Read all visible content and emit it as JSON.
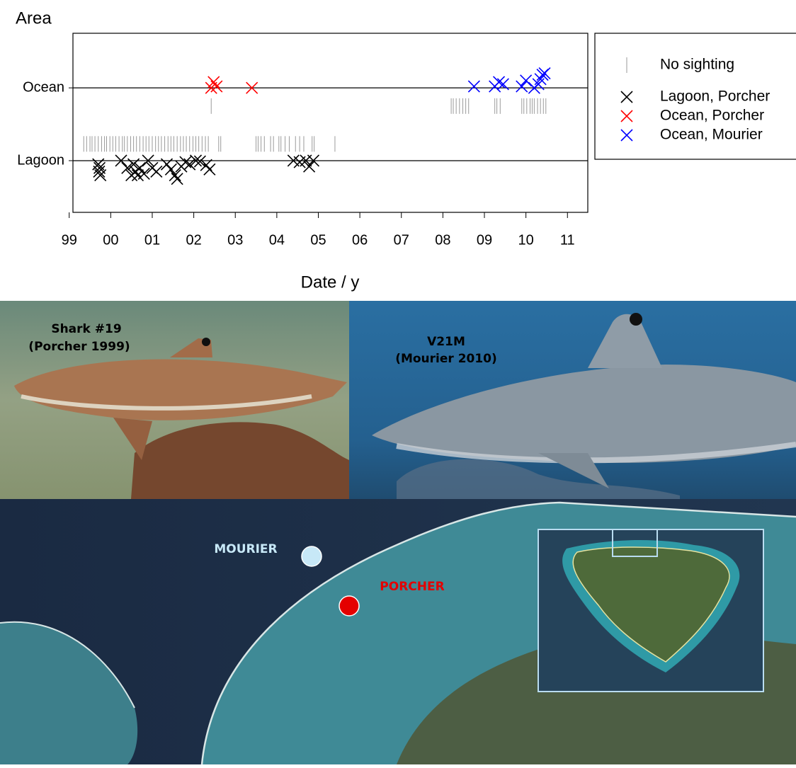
{
  "chart_data": {
    "type": "scatter",
    "ylabel": "Area",
    "xlabel": "Date / y",
    "xlim": [
      1999.09,
      2011.49
    ],
    "ylim": [
      -0.71,
      1.75
    ],
    "xticks": [
      {
        "value": 1999,
        "label": "99"
      },
      {
        "value": 2000,
        "label": "00"
      },
      {
        "value": 2001,
        "label": "01"
      },
      {
        "value": 2002,
        "label": "02"
      },
      {
        "value": 2003,
        "label": "03"
      },
      {
        "value": 2004,
        "label": "04"
      },
      {
        "value": 2005,
        "label": "05"
      },
      {
        "value": 2006,
        "label": "06"
      },
      {
        "value": 2007,
        "label": "07"
      },
      {
        "value": 2008,
        "label": "08"
      },
      {
        "value": 2009,
        "label": "09"
      },
      {
        "value": 2010,
        "label": "10"
      },
      {
        "value": 2011,
        "label": "11"
      }
    ],
    "yticks": [
      {
        "value": 0,
        "label": "Lagoon"
      },
      {
        "value": 1,
        "label": "Ocean"
      }
    ],
    "grid": true,
    "legend": "right",
    "series": [
      {
        "name": "No sighting",
        "color": "#9a9a9a",
        "marker": "tick",
        "x": [
          1999.35,
          1999.42,
          1999.5,
          1999.55,
          1999.62,
          1999.7,
          1999.78,
          1999.85,
          1999.9,
          1999.98,
          2000.05,
          2000.12,
          2000.2,
          2000.28,
          2000.33,
          2000.4,
          2000.48,
          2000.55,
          2000.62,
          2000.7,
          2000.78,
          2000.85,
          2000.92,
          2001.0,
          2001.08,
          2001.15,
          2001.22,
          2001.3,
          2001.38,
          2001.45,
          2001.52,
          2001.6,
          2001.68,
          2001.75,
          2001.82,
          2001.9,
          2001.98,
          2002.05,
          2002.12,
          2002.2,
          2002.28,
          2002.35,
          2002.6,
          2002.65,
          2003.5,
          2003.55,
          2003.62,
          2003.7,
          2003.85,
          2003.92,
          2004.05,
          2004.1,
          2004.2,
          2004.3,
          2004.45,
          2004.55,
          2004.65,
          2004.85,
          2004.9,
          2005.4,
          2002.42,
          2008.2,
          2008.25,
          2008.32,
          2008.4,
          2008.48,
          2008.55,
          2008.62,
          2009.25,
          2009.3,
          2009.38,
          2009.9,
          2009.95,
          2010.02,
          2010.1,
          2010.15,
          2010.2,
          2010.28,
          2010.35,
          2010.42,
          2010.48
        ],
        "values": [
          0.23,
          0.23,
          0.23,
          0.23,
          0.23,
          0.23,
          0.23,
          0.23,
          0.23,
          0.23,
          0.23,
          0.23,
          0.23,
          0.23,
          0.23,
          0.23,
          0.23,
          0.23,
          0.23,
          0.23,
          0.23,
          0.23,
          0.23,
          0.23,
          0.23,
          0.23,
          0.23,
          0.23,
          0.23,
          0.23,
          0.23,
          0.23,
          0.23,
          0.23,
          0.23,
          0.23,
          0.23,
          0.23,
          0.23,
          0.23,
          0.23,
          0.23,
          0.23,
          0.23,
          0.23,
          0.23,
          0.23,
          0.23,
          0.23,
          0.23,
          0.23,
          0.23,
          0.23,
          0.23,
          0.23,
          0.23,
          0.23,
          0.23,
          0.23,
          0.23,
          0.75,
          0.75,
          0.75,
          0.75,
          0.75,
          0.75,
          0.75,
          0.75,
          0.75,
          0.75,
          0.75,
          0.75,
          0.75,
          0.75,
          0.75,
          0.75,
          0.75,
          0.75,
          0.75,
          0.75,
          0.75
        ]
      },
      {
        "name": "Lagoon, Porcher",
        "color": "#000000",
        "marker": "x",
        "x": [
          1999.7,
          1999.72,
          1999.75,
          1999.73,
          2000.25,
          2000.4,
          2000.5,
          2000.55,
          2000.6,
          2000.65,
          2000.7,
          2000.8,
          2000.9,
          2001.0,
          2001.1,
          2001.35,
          2001.45,
          2001.55,
          2001.6,
          2001.7,
          2001.8,
          2001.9,
          2002.05,
          2002.15,
          2002.3,
          2002.38,
          2004.4,
          2004.55,
          2004.7,
          2004.78,
          2004.88
        ],
        "values": [
          -0.05,
          -0.15,
          -0.2,
          -0.1,
          0,
          -0.1,
          -0.2,
          -0.05,
          -0.15,
          -0.2,
          -0.1,
          -0.18,
          0,
          -0.1,
          -0.15,
          -0.05,
          -0.12,
          -0.2,
          -0.25,
          -0.08,
          -0.02,
          -0.05,
          0,
          -0.01,
          -0.06,
          -0.12,
          0,
          -0.02,
          0,
          -0.08,
          0
        ]
      },
      {
        "name": "Ocean, Porcher",
        "color": "#ff0000",
        "marker": "x",
        "x": [
          2002.42,
          2002.48,
          2002.55,
          2003.4
        ],
        "values": [
          1.0,
          1.08,
          1.02,
          1.0
        ]
      },
      {
        "name": "Ocean, Mourier",
        "color": "#0000ff",
        "marker": "x",
        "x": [
          2008.75,
          2009.25,
          2009.35,
          2009.45,
          2009.9,
          2010.0,
          2010.2,
          2010.3,
          2010.35,
          2010.4,
          2010.45
        ],
        "values": [
          1.02,
          1.02,
          1.08,
          1.05,
          1.02,
          1.1,
          1.0,
          1.05,
          1.12,
          1.18,
          1.2
        ]
      }
    ]
  },
  "photos": {
    "left": {
      "line1": "Shark #19",
      "line2": "(Porcher 1999)"
    },
    "right": {
      "line1": "V21M",
      "line2": "(Mourier 2010)"
    }
  },
  "map": {
    "site1": "MOURIER",
    "site2": "PORCHER"
  }
}
